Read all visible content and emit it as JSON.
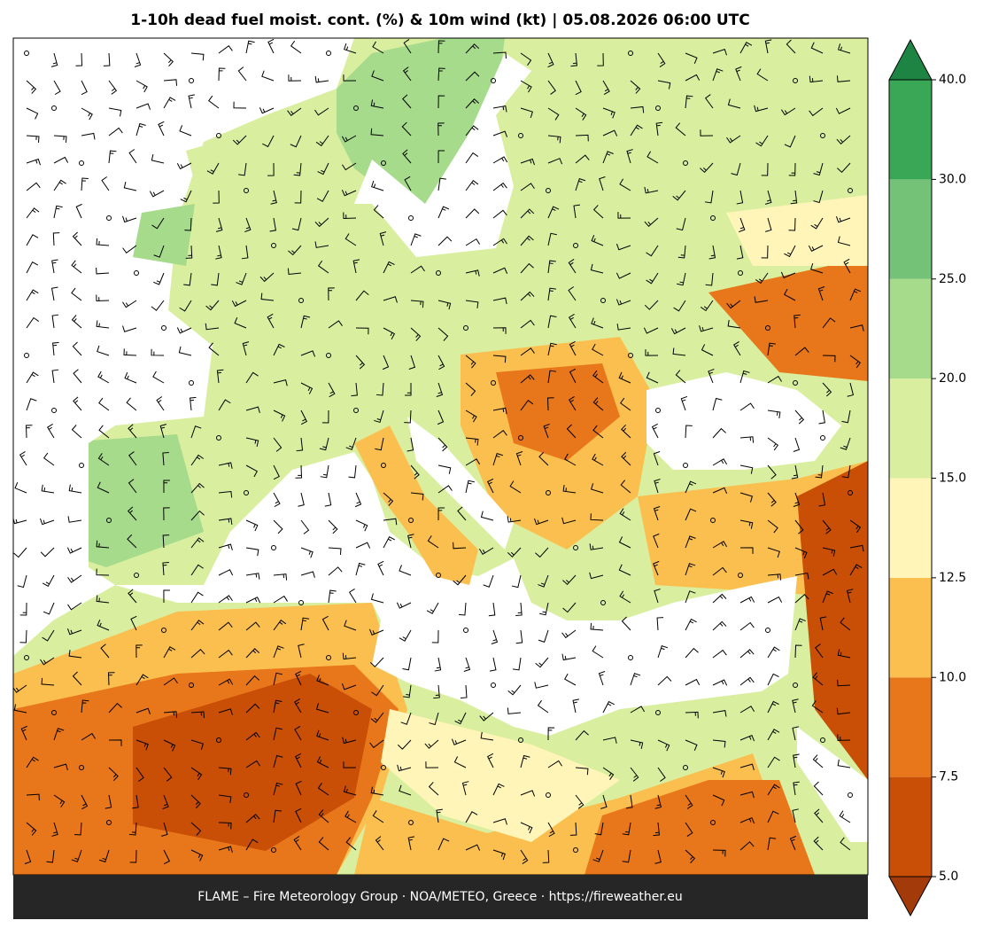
{
  "title": "1-10h dead fuel moist. cont. (%) & 10m wind (kt)  |  05.08.2026 06:00 UTC",
  "footer": "FLAME – Fire Meteorology Group · NOA/METEO, Greece · https://fireweather.eu",
  "colorbar": {
    "ticks": [
      {
        "value": 5,
        "label": "5.0"
      },
      {
        "value": 7.5,
        "label": "7.5"
      },
      {
        "value": 10,
        "label": "10.0"
      },
      {
        "value": 12.5,
        "label": "12.5"
      },
      {
        "value": 15,
        "label": "15.0"
      },
      {
        "value": 20,
        "label": "20.0"
      },
      {
        "value": 25,
        "label": "25.0"
      },
      {
        "value": 30,
        "label": "30.0"
      },
      {
        "value": 40,
        "label": "40.0"
      }
    ],
    "colors": [
      "#c94f06",
      "#e8761a",
      "#fbbf4f",
      "#fff5b8",
      "#d9ef9f",
      "#a6db8c",
      "#74c277",
      "#3aa757"
    ],
    "under_color": "#a33a09",
    "over_color": "#1e8444"
  }
}
